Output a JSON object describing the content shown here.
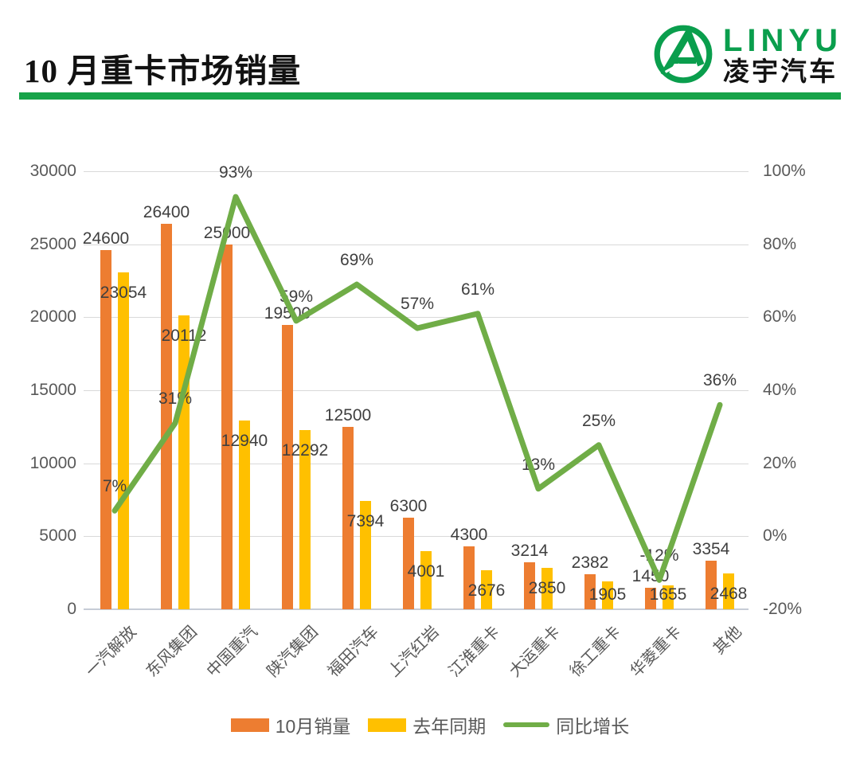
{
  "header": {
    "title": "10 月重卡市场销量",
    "underline_color": "#17a349",
    "logo": {
      "brand_latin": "LINYU",
      "brand_cn": "凌宇汽车",
      "green": "#0a9e4d"
    }
  },
  "chart_data": {
    "type": "bar+line",
    "title": "10 月重卡市场销量",
    "categories": [
      "一汽解放",
      "东风集团",
      "中国重汽",
      "陕汽集团",
      "福田汽车",
      "上汽红岩",
      "江淮重卡",
      "大运重卡",
      "徐工重卡",
      "华菱重卡",
      "其他"
    ],
    "series": [
      {
        "name": "10月销量",
        "type": "bar",
        "color": "#ED7D31",
        "values": [
          24600,
          26400,
          25000,
          19500,
          12500,
          6300,
          4300,
          3214,
          2382,
          1450,
          3354
        ]
      },
      {
        "name": "去年同期",
        "type": "bar",
        "color": "#FFC000",
        "values": [
          23054,
          20112,
          12940,
          12292,
          7394,
          4001,
          2676,
          2850,
          1905,
          1655,
          2468
        ]
      },
      {
        "name": "同比增长",
        "type": "line",
        "color": "#70AD47",
        "unit": "%",
        "values": [
          7,
          31,
          93,
          59,
          69,
          57,
          61,
          13,
          25,
          -12,
          36
        ],
        "labels": [
          "7%",
          "31%",
          "93%",
          "59%",
          "69%",
          "57%",
          "61%",
          "13%",
          "25%",
          "-12%",
          "36%"
        ]
      }
    ],
    "left_axis": {
      "min": 0,
      "max": 30000,
      "step": 5000,
      "tick_labels": [
        "0",
        "5000",
        "10000",
        "15000",
        "20000",
        "25000",
        "30000"
      ]
    },
    "right_axis": {
      "min": -20,
      "max": 100,
      "step": 20,
      "tick_labels": [
        "-20%",
        "0%",
        "20%",
        "40%",
        "60%",
        "80%",
        "100%"
      ]
    },
    "legend": [
      {
        "label": "10月销量",
        "swatch": "bar",
        "color": "#ED7D31"
      },
      {
        "label": "去年同期",
        "swatch": "bar",
        "color": "#FFC000"
      },
      {
        "label": "同比增长",
        "swatch": "line",
        "color": "#70AD47"
      }
    ],
    "grid": true,
    "legend_position": "bottom"
  },
  "style": {
    "grid_color": "#d9d9d9",
    "axis_line_color": "#c6ccd6",
    "axis_text_color": "#595959",
    "data_label_color": "#3f3f3f"
  }
}
